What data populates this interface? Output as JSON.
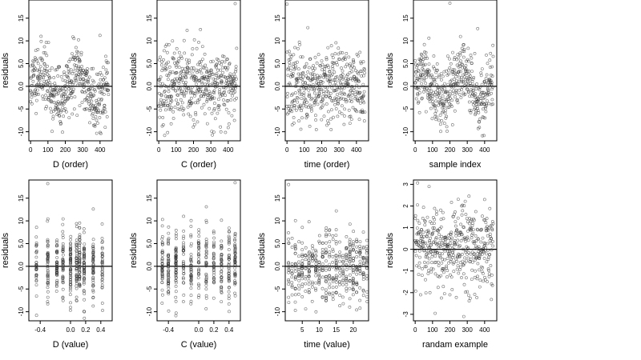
{
  "chart_data": [
    {
      "type": "scatter",
      "xlabel": "D (order)",
      "ylabel": "residuals",
      "xlim": [
        -10,
        470
      ],
      "ylim": [
        -12,
        19
      ],
      "xticks": [
        0,
        100,
        200,
        300,
        400
      ],
      "xtick_labels": [
        "0",
        "100",
        "200",
        "300",
        "400"
      ],
      "yticks": [
        -10,
        -5,
        0,
        5,
        10,
        15
      ],
      "ytick_labels": [
        "-10",
        "-5",
        "0.0",
        "5.0",
        "10",
        "15"
      ],
      "hline": 0,
      "grid": false,
      "series": [
        {
          "kind": "order",
          "n": 450,
          "pattern": "wave",
          "seed": 11,
          "x": [
            0,
            40,
            80,
            120,
            160,
            200,
            240,
            280,
            320,
            360,
            400,
            440
          ],
          "y": [
            -3.4,
            2.1,
            8.7,
            -1.9,
            4.3,
            1.2,
            -6.1,
            0.6,
            -2.8,
            3.9,
            11.2,
            -0.7
          ]
        }
      ]
    },
    {
      "type": "scatter",
      "xlabel": "C (order)",
      "ylabel": "residuals",
      "xlim": [
        -10,
        470
      ],
      "ylim": [
        -12,
        19
      ],
      "xticks": [
        0,
        100,
        200,
        300,
        400
      ],
      "xtick_labels": [
        "0",
        "100",
        "200",
        "300",
        "400"
      ],
      "yticks": [
        -10,
        -5,
        0,
        5,
        10,
        15
      ],
      "ytick_labels": [
        "-10",
        "-5",
        "0.0",
        "5.0",
        "10",
        "15"
      ],
      "hline": 0,
      "grid": false,
      "series": [
        {
          "kind": "order",
          "n": 450,
          "pattern": "flat",
          "seed": 23,
          "x": [
            0,
            40,
            80,
            120,
            160,
            200,
            240,
            280,
            320,
            360,
            400,
            440
          ],
          "y": [
            1.4,
            -5.2,
            6.3,
            -0.8,
            3.1,
            -7.4,
            12.5,
            0.3,
            -2.6,
            4.8,
            -9.1,
            18.2
          ]
        }
      ]
    },
    {
      "type": "scatter",
      "xlabel": "time (order)",
      "ylabel": "residuals",
      "xlim": [
        -10,
        470
      ],
      "ylim": [
        -12,
        19
      ],
      "xticks": [
        0,
        100,
        200,
        300,
        400
      ],
      "xtick_labels": [
        "0",
        "100",
        "200",
        "300",
        "400"
      ],
      "yticks": [
        -10,
        -5,
        0,
        5,
        10,
        15
      ],
      "ytick_labels": [
        "-10",
        "-5",
        "0.0",
        "5.0",
        "10",
        "15"
      ],
      "hline": 0,
      "grid": false,
      "series": [
        {
          "kind": "order",
          "n": 450,
          "pattern": "flat",
          "seed": 37,
          "x": [
            0,
            40,
            80,
            120,
            160,
            200,
            240,
            280,
            320,
            360,
            400,
            440
          ],
          "y": [
            18.1,
            -4.3,
            2.7,
            12.9,
            -1.5,
            5.6,
            -8.2,
            0.9,
            3.4,
            -6.7,
            1.8,
            -2.2
          ]
        }
      ]
    },
    {
      "type": "scatter",
      "xlabel": "sample index",
      "ylabel": "residuals",
      "xlim": [
        -10,
        470
      ],
      "ylim": [
        -12,
        19
      ],
      "xticks": [
        0,
        100,
        200,
        300,
        400
      ],
      "xtick_labels": [
        "0",
        "100",
        "200",
        "300",
        "400"
      ],
      "yticks": [
        -10,
        -5,
        0,
        5,
        10,
        15
      ],
      "ytick_labels": [
        "-10",
        "-5",
        "0.0",
        "5.0",
        "10",
        "15"
      ],
      "hline": 0,
      "grid": false,
      "series": [
        {
          "kind": "order",
          "n": 450,
          "pattern": "wave",
          "seed": 41,
          "x": [
            0,
            40,
            80,
            120,
            160,
            200,
            240,
            280,
            320,
            360,
            400,
            440
          ],
          "y": [
            0.8,
            -2.6,
            4.9,
            -7.3,
            2.2,
            18.3,
            -3.1,
            6.4,
            -5.8,
            12.7,
            1.1,
            -4.0
          ]
        }
      ]
    },
    {
      "type": "scatter",
      "xlabel": "D (value)",
      "ylabel": "residuals",
      "xlim": [
        -0.55,
        0.55
      ],
      "ylim": [
        -12,
        19
      ],
      "xticks": [
        -0.4,
        0.0,
        0.2,
        0.4
      ],
      "xtick_labels": [
        "-0.4",
        "0.0",
        "0.2",
        "0.4"
      ],
      "yticks": [
        -10,
        -5,
        0,
        5,
        10,
        15
      ],
      "ytick_labels": [
        "-10",
        "-5",
        "0.0",
        "5.0",
        "10",
        "15"
      ],
      "hline": 0,
      "grid": false,
      "series": [
        {
          "kind": "value",
          "n": 450,
          "seed": 53,
          "clusters": [
            -0.45,
            -0.3,
            -0.18,
            -0.1,
            0.0,
            0.08,
            0.12,
            0.18,
            0.3,
            0.42
          ],
          "x": [
            -0.45,
            -0.3,
            -0.18,
            -0.1,
            0.0,
            0.08,
            0.12,
            0.18,
            0.3,
            0.42
          ],
          "y": [
            -4.1,
            18.2,
            3.3,
            -2.4,
            5.1,
            -6.8,
            -1.2,
            0.7,
            12.6,
            2.9
          ]
        }
      ]
    },
    {
      "type": "scatter",
      "xlabel": "C (value)",
      "ylabel": "residuals",
      "xlim": [
        -0.55,
        0.55
      ],
      "ylim": [
        -12,
        19
      ],
      "xticks": [
        -0.4,
        0.0,
        0.2,
        0.4
      ],
      "xtick_labels": [
        "-0.4",
        "0.0",
        "0.2",
        "0.4"
      ],
      "yticks": [
        -10,
        -5,
        0,
        5,
        10,
        15
      ],
      "ytick_labels": [
        "-10",
        "-5",
        "0.0",
        "5.0",
        "10",
        "15"
      ],
      "hline": 0,
      "grid": false,
      "series": [
        {
          "kind": "value",
          "n": 450,
          "seed": 67,
          "clusters": [
            -0.48,
            -0.4,
            -0.3,
            -0.2,
            -0.1,
            0.0,
            0.1,
            0.2,
            0.3,
            0.4,
            0.48
          ],
          "x": [
            -0.48,
            -0.4,
            -0.3,
            -0.2,
            -0.1,
            0.0,
            0.1,
            0.2,
            0.3,
            0.4,
            0.48
          ],
          "y": [
            5.2,
            -3.7,
            1.9,
            11.0,
            -6.4,
            0.8,
            13.1,
            -2.5,
            4.6,
            -8.3,
            18.4
          ]
        }
      ]
    },
    {
      "type": "scatter",
      "xlabel": "time (value)",
      "ylabel": "residuals",
      "xlim": [
        0,
        24.5
      ],
      "ylim": [
        -12,
        19
      ],
      "xticks": [
        5,
        10,
        15,
        20
      ],
      "xtick_labels": [
        "5",
        "10",
        "15",
        "20"
      ],
      "yticks": [
        -10,
        -5,
        0,
        5,
        10,
        15
      ],
      "ytick_labels": [
        "-10",
        "-5",
        "0.0",
        "5.0",
        "10",
        "15"
      ],
      "hline": 0,
      "grid": false,
      "series": [
        {
          "kind": "value",
          "n": 450,
          "seed": 79,
          "clusters": [
            1,
            2,
            3,
            4,
            5,
            6,
            7,
            8,
            9,
            10,
            11,
            12,
            13,
            14,
            15,
            16,
            17,
            18,
            19,
            20,
            21,
            22,
            23,
            24
          ],
          "x": [
            1,
            3,
            5,
            7,
            9,
            11,
            12,
            13,
            15,
            17,
            19,
            21,
            23,
            24
          ],
          "y": [
            18.0,
            -4.9,
            2.6,
            9.8,
            -1.3,
            3.7,
            -7.5,
            0.4,
            12.2,
            -3.0,
            5.9,
            -9.6,
            1.6,
            -2.1
          ]
        }
      ]
    },
    {
      "type": "scatter",
      "xlabel": "randam example",
      "ylabel": "residuals",
      "xlim": [
        -10,
        470
      ],
      "ylim": [
        -3.3,
        3.2
      ],
      "xticks": [
        0,
        100,
        200,
        300,
        400
      ],
      "xtick_labels": [
        "0",
        "100",
        "200",
        "300",
        "400"
      ],
      "yticks": [
        -3,
        -2,
        -1,
        0,
        1,
        2,
        3
      ],
      "ytick_labels": [
        "-3",
        "-2",
        "-1",
        "0",
        "1",
        "2",
        "3"
      ],
      "hline": 0,
      "grid": false,
      "series": [
        {
          "kind": "order",
          "n": 450,
          "pattern": "normal",
          "seed": 97,
          "x": [
            0,
            40,
            80,
            120,
            160,
            200,
            240,
            280,
            320,
            360,
            400,
            440
          ],
          "y": [
            0.4,
            -1.2,
            2.9,
            -0.6,
            1.7,
            -2.1,
            0.9,
            -3.1,
            1.3,
            -0.2,
            2.3,
            -1.6
          ]
        }
      ]
    }
  ]
}
